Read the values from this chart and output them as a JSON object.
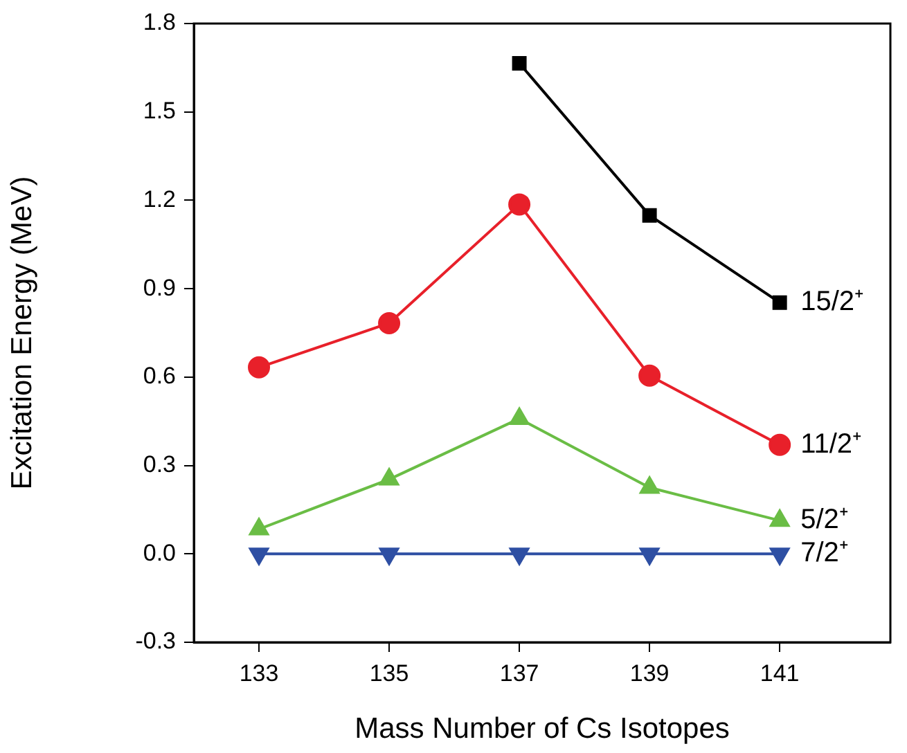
{
  "chart_data": {
    "type": "line",
    "xlabel": "Mass Number of Cs Isotopes",
    "ylabel": "Excitation Energy (MeV)",
    "x": [
      133,
      135,
      137,
      139,
      141
    ],
    "series": [
      {
        "name": "15/2⁺",
        "color": "#000000",
        "marker": "square",
        "values": [
          null,
          null,
          1.665,
          1.149,
          0.853
        ]
      },
      {
        "name": "11/2⁺",
        "color": "#e8202a",
        "marker": "circle",
        "values": [
          0.633,
          0.783,
          1.186,
          0.605,
          0.37
        ]
      },
      {
        "name": "5/2⁺",
        "color": "#6abd45",
        "marker": "triangle",
        "values": [
          0.084,
          0.253,
          0.459,
          0.225,
          0.113
        ]
      },
      {
        "name": "7/2⁺",
        "color": "#2e4fa3",
        "marker": "triangle-down",
        "values": [
          0,
          0,
          0,
          0,
          0
        ]
      }
    ],
    "xlim": [
      132,
      142.7
    ],
    "xticks": [
      133,
      135,
      137,
      139,
      141
    ],
    "ylim": [
      -0.3,
      1.8
    ],
    "yticks": [
      {
        "value": -0.3,
        "label": "-0.3"
      },
      {
        "value": 0,
        "label": "0.0"
      },
      {
        "value": 0.3,
        "label": "0.3"
      },
      {
        "value": 0.6,
        "label": "0.6"
      },
      {
        "value": 0.9,
        "label": "0.9"
      },
      {
        "value": 1.2,
        "label": "1.2"
      },
      {
        "value": 1.5,
        "label": "1.5"
      },
      {
        "value": 1.8,
        "label": "1.8"
      }
    ],
    "grid": false,
    "legend": false
  }
}
